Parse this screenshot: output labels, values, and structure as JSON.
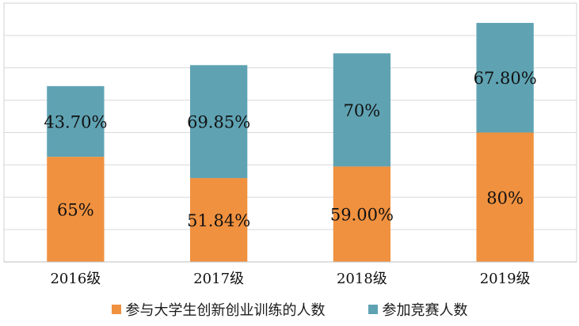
{
  "chart_data": {
    "type": "bar",
    "stacked": true,
    "categories": [
      "2016级",
      "2017级",
      "2018级",
      "2019级"
    ],
    "series": [
      {
        "name": "参与大学生创新创业训练的人数",
        "values": [
          65,
          51.84,
          59.0,
          80
        ],
        "labels": [
          "65%",
          "51.84%",
          "59.00%",
          "80%"
        ],
        "color": "#F0913F"
      },
      {
        "name": "参加竞赛人数",
        "values": [
          43.7,
          69.85,
          70,
          67.8
        ],
        "labels": [
          "43.70%",
          "69.85%",
          "70%",
          "67.80%"
        ],
        "color": "#5FA3B3"
      }
    ],
    "ylim": [
      0,
      160
    ],
    "grid": true,
    "legend_position": "bottom"
  }
}
